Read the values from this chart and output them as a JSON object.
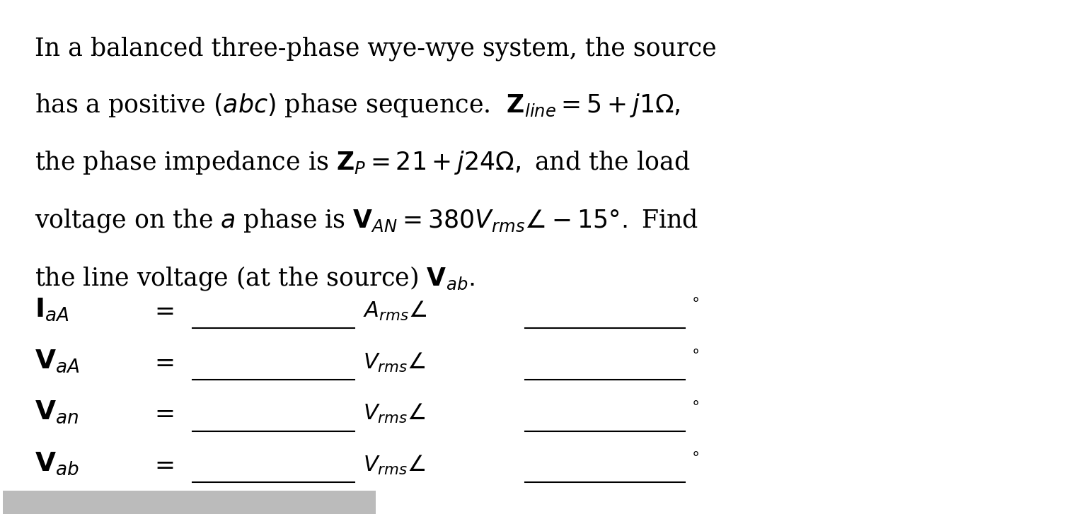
{
  "bg_color": "#ffffff",
  "text_color": "#000000",
  "figsize": [
    15.15,
    7.27
  ],
  "dpi": 100,
  "line1": "In a balanced three-phase wye-wye system, the source",
  "line2": "has a positive $(abc)$ phase sequence.  $\\mathbf{Z}_{line} = 5 + j1\\Omega,$",
  "line3": "the phase impedance is $\\mathbf{Z}_P = 21 + j24\\Omega,$ and the load",
  "line4": "voltage on the $a$ phase is $\\mathbf{V}_{AN} = 380V_{rms}\\angle -15°.$ Find",
  "line5": "the line voltage (at the source) $\\mathbf{V}_{ab}.$",
  "row_labels": [
    "$\\mathbf{I}_{aA}$",
    "$\\mathbf{V}_{aA}$",
    "$\\mathbf{V}_{an}$",
    "$\\mathbf{V}_{ab}$"
  ],
  "row_units": [
    "$A_{rms}\\angle$",
    "$V_{rms}\\angle$",
    "$V_{rms}\\angle$",
    "$V_{rms}\\angle$"
  ],
  "fs_main": 25,
  "gray_bar_color": "#bbbbbb"
}
